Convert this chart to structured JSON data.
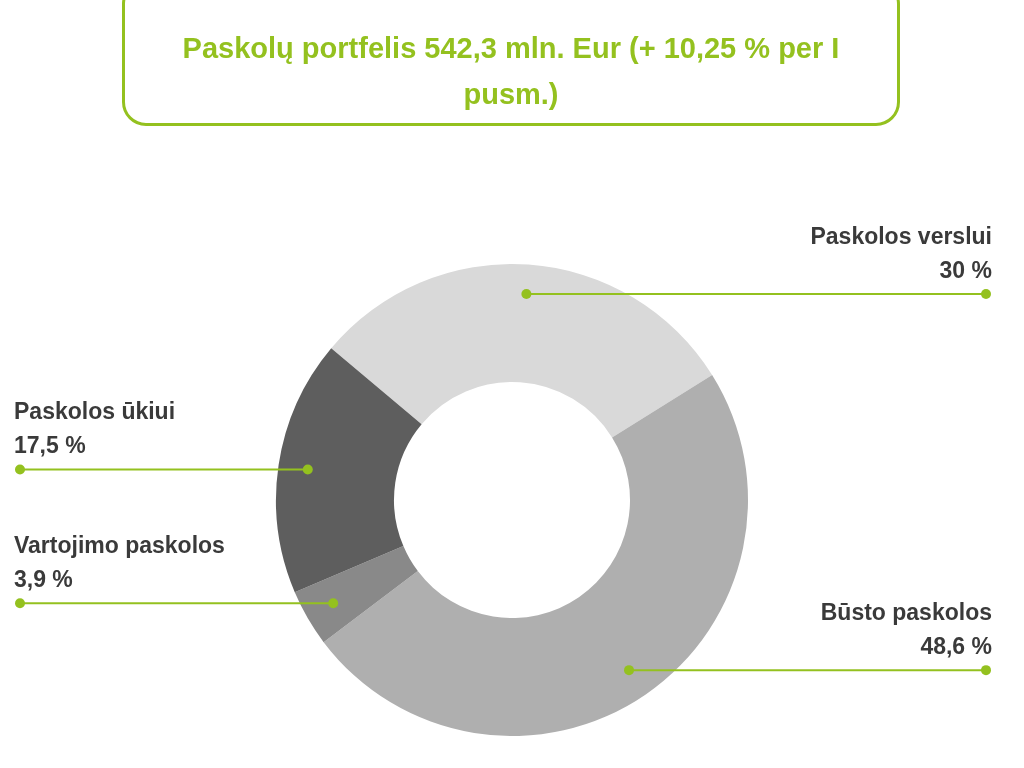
{
  "chart_data": {
    "type": "donut",
    "title": "Paskolų portfelis 542,3 mln. Eur (+ 10,25 % per I pusm.)",
    "categories": [
      "Paskolos verslui",
      "Būsto paskolos",
      "Vartojimo paskolos",
      "Paskolos ūkiui"
    ],
    "values": [
      30,
      48.6,
      3.9,
      17.5
    ],
    "colors": [
      "#d9d9d9",
      "#afafaf",
      "#898989",
      "#5e5e5e"
    ],
    "value_labels": [
      "30 %",
      "48,6 %",
      "3,9 %",
      "17,5 %"
    ],
    "legend": false
  }
}
